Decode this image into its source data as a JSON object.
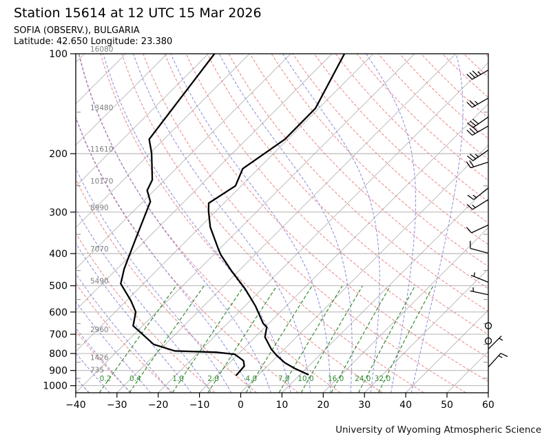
{
  "header": {
    "title": "Station 15614 at 12 UTC 15 Mar 2026",
    "station": "SOFIA (OBSERV.), BULGARIA",
    "location": "Latitude: 42.650 Longitude: 23.380"
  },
  "footer": {
    "credit": "University of Wyoming Atmospheric Science"
  },
  "chart_data": {
    "type": "line",
    "subtype": "skew-t-log-p-sounding",
    "title": "Station 15614 at 12 UTC 15 Mar 2026",
    "xlabel": "",
    "ylabel": "",
    "x_range": [
      -40,
      60
    ],
    "x_ticks": [
      -40,
      -30,
      -20,
      -10,
      0,
      10,
      20,
      30,
      40,
      50,
      60
    ],
    "p_top": 100,
    "p_bottom": 1050,
    "pressure_ticks": [
      100,
      200,
      300,
      400,
      500,
      600,
      700,
      800,
      900,
      1000
    ],
    "pressure_minor_ticks": [
      150,
      250,
      350,
      450,
      550,
      650,
      750,
      850,
      950
    ],
    "height_labels": [
      {
        "p": 100,
        "m": 16080
      },
      {
        "p": 150,
        "m": 13480
      },
      {
        "p": 200,
        "m": 11610
      },
      {
        "p": 250,
        "m": 10170
      },
      {
        "p": 300,
        "m": 8990
      },
      {
        "p": 400,
        "m": 7070
      },
      {
        "p": 500,
        "m": 5490
      },
      {
        "p": 700,
        "m": 2960
      },
      {
        "p": 850,
        "m": 1426
      },
      {
        "p": 925,
        "m": 735
      }
    ],
    "mixing_ratio_values": [
      0.2,
      0.4,
      1.0,
      2.0,
      4.0,
      7.0,
      10.0,
      16.0,
      24.0,
      32.0
    ],
    "mixing_ratio_labels": [
      "0.2",
      "0.4",
      "1.0",
      "2.0",
      "4.0",
      "7.0",
      "10.0",
      "16.0",
      "24.0",
      "32.0"
    ],
    "series": [
      {
        "name": "temperature",
        "points": [
          [
            100,
            -57.0
          ],
          [
            146,
            -50.8
          ],
          [
            181,
            -50.7
          ],
          [
            222,
            -53.8
          ],
          [
            250,
            -51.4
          ],
          [
            282,
            -53.7
          ],
          [
            298,
            -51.8
          ],
          [
            333,
            -47.5
          ],
          [
            388,
            -40.2
          ],
          [
            403,
            -38.3
          ],
          [
            450,
            -31.9
          ],
          [
            511,
            -24.1
          ],
          [
            576,
            -17.4
          ],
          [
            650,
            -11.3
          ],
          [
            666,
            -9.6
          ],
          [
            714,
            -7.6
          ],
          [
            777,
            -3.1
          ],
          [
            810,
            -0.4
          ],
          [
            853,
            3.4
          ],
          [
            889,
            7.4
          ],
          [
            926,
            11.9
          ]
        ]
      },
      {
        "name": "dewpoint",
        "points": [
          [
            100,
            -88.5
          ],
          [
            181,
            -83.6
          ],
          [
            199,
            -79.7
          ],
          [
            240,
            -73.0
          ],
          [
            258,
            -71.7
          ],
          [
            279,
            -68.2
          ],
          [
            367,
            -62.4
          ],
          [
            444,
            -58.3
          ],
          [
            493,
            -55.5
          ],
          [
            555,
            -48.9
          ],
          [
            600,
            -45.0
          ],
          [
            660,
            -42.3
          ],
          [
            751,
            -32.8
          ],
          [
            786,
            -26.1
          ],
          [
            793,
            -15.8
          ],
          [
            804,
            -10.8
          ],
          [
            841,
            -7.1
          ],
          [
            873,
            -5.6
          ],
          [
            930,
            -5.3
          ]
        ]
      }
    ],
    "wind_barbs": [
      {
        "p": 112,
        "dir": 240,
        "spd": 35
      },
      {
        "p": 136,
        "dir": 240,
        "spd": 25
      },
      {
        "p": 155,
        "dir": 235,
        "spd": 30
      },
      {
        "p": 165,
        "dir": 240,
        "spd": 30
      },
      {
        "p": 195,
        "dir": 235,
        "spd": 25
      },
      {
        "p": 212,
        "dir": 252,
        "spd": 20
      },
      {
        "p": 254,
        "dir": 232,
        "spd": 15
      },
      {
        "p": 275,
        "dir": 238,
        "spd": 15
      },
      {
        "p": 328,
        "dir": 245,
        "spd": 10
      },
      {
        "p": 399,
        "dir": 285,
        "spd": 10
      },
      {
        "p": 488,
        "dir": 292,
        "spd": 5
      },
      {
        "p": 532,
        "dir": 282,
        "spd": 5
      },
      {
        "p": 660,
        "dir": 0,
        "spd": 0
      },
      {
        "p": 733,
        "dir": 0,
        "spd": 0
      },
      {
        "p": 776,
        "dir": 45,
        "spd": 5
      },
      {
        "p": 879,
        "dir": 42,
        "spd": 15
      }
    ],
    "background": {
      "isotherm_step": 10,
      "dry_adiabat_step": 10,
      "moist_adiabat_step": 5,
      "mixing_line_top_p": 500,
      "colors": {
        "isotherm": "#b5b5b5",
        "gridline": "#a8a8a8",
        "dry_adiabat": "#ee8383",
        "moist_adiabat": "#8989dd",
        "mixing_ratio": "#2f8b2f",
        "sounding": "#000000",
        "frame": "#000000"
      },
      "grid": true,
      "legend": "none"
    }
  }
}
